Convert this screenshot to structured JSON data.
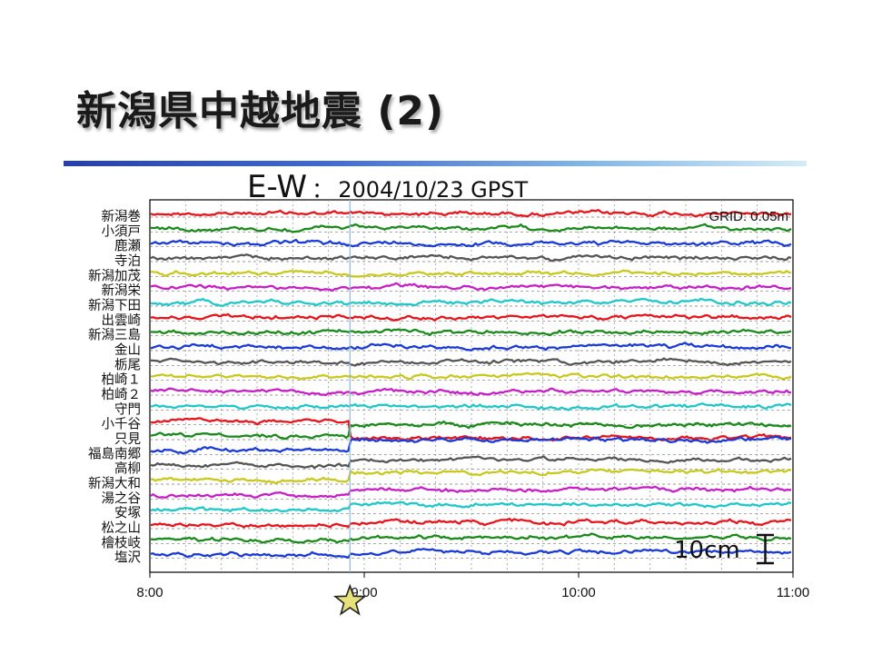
{
  "slide": {
    "title": "新潟県中越地震 (2)"
  },
  "chart_data": {
    "type": "line",
    "title_main": "E-W",
    "title_sep": "：",
    "title_date": "2004/10/23 GPST",
    "grid_label": "GRID: 0.05m",
    "scale_label": "10cm",
    "x_ticks": [
      "8:00",
      "9:00",
      "10:00",
      "11:00"
    ],
    "xlim": [
      "8:00",
      "11:00"
    ],
    "event_time": "8:56",
    "event_marker": "star",
    "grid": true,
    "stations": [
      "新潟巻",
      "小須戸",
      "鹿瀬",
      "寺泊",
      "新潟加茂",
      "新潟栄",
      "新潟下田",
      "出雲崎",
      "新潟三島",
      "金山",
      "栃尾",
      "柏崎１",
      "柏崎２",
      "守門",
      "小千谷",
      "只見",
      "福島南郷",
      "高柳",
      "新潟大和",
      "湯之谷",
      "安塚",
      "松之山",
      "檜枝岐",
      "塩沢"
    ],
    "series_colors": [
      "#e8141c",
      "#1a8a1a",
      "#1a3ad8",
      "#555555",
      "#c8c81e",
      "#c81ec8",
      "#1ec8c8"
    ],
    "offsets_cm": [
      0,
      0,
      0,
      0,
      0,
      0,
      0,
      0,
      0,
      0,
      0,
      0,
      0,
      0,
      6,
      -4,
      -4,
      -2,
      -3,
      -2,
      -2,
      -1,
      -1,
      -1
    ]
  }
}
